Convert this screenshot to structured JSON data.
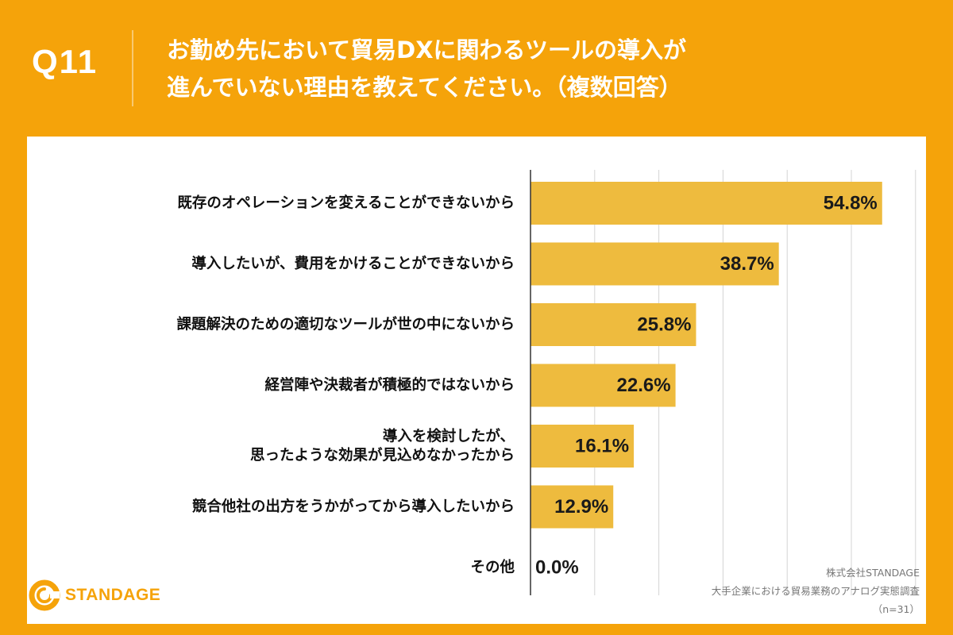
{
  "header": {
    "question_number": "Q11",
    "title_lines": [
      "お勤め先において貿易DXに関わるツールの導入が",
      "進んでいない理由を教えてください。（複数回答）"
    ]
  },
  "footer": {
    "logo_text": "STANDAGE",
    "source_lines": [
      "株式会社STANDAGE",
      "大手企業における貿易業務のアナログ実態調査",
      "（n=31）"
    ]
  },
  "colors": {
    "background": "#F5A30A",
    "bar": "#EEBB3E",
    "panel": "#FFFFFF",
    "grid": "#D4D4D4",
    "axis": "#333333"
  },
  "chart_data": {
    "type": "bar",
    "orientation": "horizontal",
    "categories": [
      [
        "既存のオペレーションを変えることができないから"
      ],
      [
        "導入したいが、費用をかけることができないから"
      ],
      [
        "課題解決のための適切なツールが世の中にないから"
      ],
      [
        "経営陣や決裁者が積極的ではないから"
      ],
      [
        "導入を検討したが、",
        "思ったような効果が見込めなかったから"
      ],
      [
        "競合他社の出方をうかがってから導入したいから"
      ],
      [
        "その他"
      ]
    ],
    "values": [
      54.8,
      38.7,
      25.8,
      22.6,
      16.1,
      12.9,
      0.0
    ],
    "data_labels": [
      "54.8%",
      "38.7%",
      "25.8%",
      "22.6%",
      "16.1%",
      "12.9%",
      "0.0%"
    ],
    "xlim": [
      0,
      60
    ],
    "grid": true,
    "unit": "%"
  }
}
